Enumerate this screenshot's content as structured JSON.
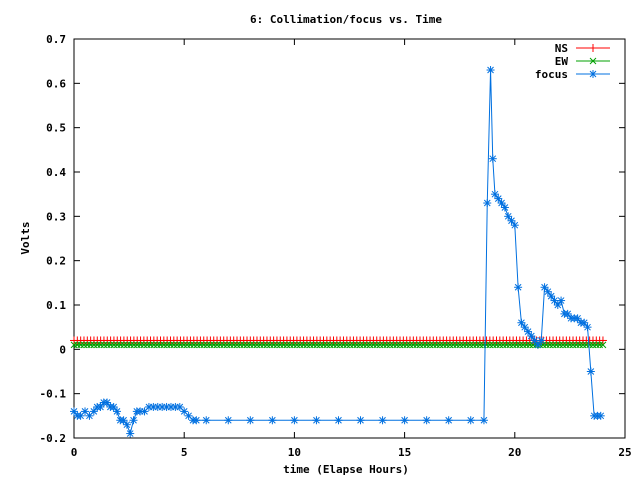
{
  "chart_data": {
    "type": "line",
    "title": "6: Collimation/focus vs. Time",
    "xlabel": "time (Elapse Hours)",
    "ylabel": "Volts",
    "xlim": [
      0,
      25
    ],
    "ylim": [
      -0.2,
      0.7
    ],
    "xticks": [
      0,
      5,
      10,
      15,
      20,
      25
    ],
    "xtick_labels": [
      "0",
      "5",
      "10",
      "15",
      "20",
      "25"
    ],
    "yticks": [
      -0.2,
      -0.1,
      0,
      0.1,
      0.2,
      0.3,
      0.4,
      0.5,
      0.6,
      0.7
    ],
    "ytick_labels": [
      "-0.2",
      "-0.1",
      "0",
      "0.1",
      "0.2",
      "0.3",
      "0.4",
      "0.5",
      "0.6",
      "0.7"
    ],
    "grid": false,
    "legend_position": "top-right",
    "series": [
      {
        "name": "NS",
        "color": "#ff0000",
        "marker": "plus",
        "constant": 0.02,
        "x_start": 0,
        "x_end": 24,
        "n_points": 160
      },
      {
        "name": "EW",
        "color": "#00a000",
        "marker": "cross",
        "constant": 0.01,
        "x_start": 0,
        "x_end": 24,
        "n_points": 160
      },
      {
        "name": "focus",
        "color": "#0070e0",
        "marker": "star",
        "x": [
          0,
          0.15,
          0.3,
          0.5,
          0.7,
          0.9,
          1.05,
          1.2,
          1.35,
          1.5,
          1.65,
          1.8,
          1.95,
          2.1,
          2.25,
          2.4,
          2.55,
          2.7,
          2.85,
          3.0,
          3.2,
          3.4,
          3.6,
          3.8,
          4.0,
          4.2,
          4.4,
          4.6,
          4.8,
          5.0,
          5.2,
          5.4,
          5.55,
          6.0,
          7.0,
          8.0,
          9.0,
          10.0,
          11.0,
          12.0,
          13.0,
          14.0,
          15.0,
          16.0,
          17.0,
          18.0,
          18.6,
          18.75,
          18.9,
          19.0,
          19.1,
          19.25,
          19.4,
          19.55,
          19.7,
          19.85,
          20.0,
          20.15,
          20.3,
          20.45,
          20.6,
          20.75,
          20.9,
          21.05,
          21.2,
          21.35,
          21.5,
          21.65,
          21.8,
          21.95,
          22.1,
          22.25,
          22.4,
          22.55,
          22.7,
          22.85,
          23.0,
          23.15,
          23.3,
          23.45,
          23.6,
          23.75,
          23.9
        ],
        "y": [
          -0.14,
          -0.15,
          -0.15,
          -0.14,
          -0.15,
          -0.14,
          -0.13,
          -0.13,
          -0.12,
          -0.12,
          -0.13,
          -0.13,
          -0.14,
          -0.16,
          -0.16,
          -0.17,
          -0.19,
          -0.16,
          -0.14,
          -0.14,
          -0.14,
          -0.13,
          -0.13,
          -0.13,
          -0.13,
          -0.13,
          -0.13,
          -0.13,
          -0.13,
          -0.14,
          -0.15,
          -0.16,
          -0.16,
          -0.16,
          -0.16,
          -0.16,
          -0.16,
          -0.16,
          -0.16,
          -0.16,
          -0.16,
          -0.16,
          -0.16,
          -0.16,
          -0.16,
          -0.16,
          -0.16,
          0.33,
          0.63,
          0.43,
          0.35,
          0.34,
          0.33,
          0.32,
          0.3,
          0.29,
          0.28,
          0.14,
          0.06,
          0.05,
          0.04,
          0.03,
          0.02,
          0.01,
          0.02,
          0.14,
          0.13,
          0.12,
          0.11,
          0.1,
          0.11,
          0.08,
          0.08,
          0.07,
          0.07,
          0.07,
          0.06,
          0.06,
          0.05,
          -0.05,
          -0.15,
          -0.15,
          -0.15
        ]
      }
    ]
  }
}
